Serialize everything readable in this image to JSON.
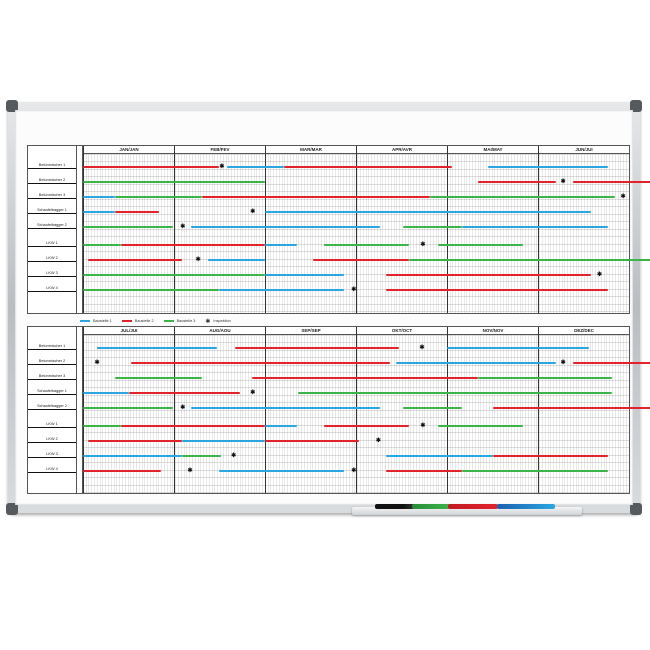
{
  "colors": {
    "blue": "#2aa7e0",
    "red": "#e3232c",
    "green": "#3cb44a"
  },
  "legend": [
    {
      "label": "Baustelle 1",
      "color": "blue"
    },
    {
      "label": "Baustelle 2",
      "color": "red"
    },
    {
      "label": "Baustelle 3",
      "color": "green"
    },
    {
      "label": "Inspektion",
      "icon": "asterisk-icon"
    }
  ],
  "panels": [
    {
      "months": [
        "JAN/JAN",
        "FEB/FEV",
        "MAR/MAR",
        "APR/AVR",
        "MAI/MAY",
        "JUN/JUI"
      ],
      "rows": [
        {
          "label": "Betonmischer 1",
          "bars": [
            [
              "red",
              0,
              1.49
            ],
            [
              "blue",
              1.58,
              2.21
            ],
            [
              "red",
              2.21,
              4.05
            ],
            [
              "blue",
              4.45,
              5.77
            ]
          ],
          "inspections": [
            1.52
          ]
        },
        {
          "label": "Betonmischer 2",
          "bars": [
            [
              "green",
              0,
              2
            ],
            [
              "red",
              4.34,
              5.2
            ],
            [
              "red",
              5.38,
              6.35
            ]
          ],
          "inspections": [
            5.27
          ]
        },
        {
          "label": "Betonmischer 3",
          "bars": [
            [
              "blue",
              0,
              0.35
            ],
            [
              "green",
              0.35,
              1.31
            ],
            [
              "red",
              1.31,
              3.81
            ],
            [
              "green",
              3.81,
              5.85
            ]
          ],
          "inspections": [
            5.93
          ]
        },
        {
          "label": "Schaufelbagger 1",
          "bars": [
            [
              "blue",
              0,
              0.35
            ],
            [
              "red",
              0.35,
              0.83
            ],
            [
              "blue",
              2,
              5.58
            ]
          ],
          "inspections": [
            1.86
          ]
        },
        {
          "label": "Schaufelbagger 2",
          "bars": [
            [
              "green",
              0,
              0.99
            ],
            [
              "blue",
              1.19,
              3.26
            ],
            [
              "green",
              3.52,
              4.16
            ],
            [
              "blue",
              4.16,
              5.77
            ]
          ],
          "inspections": [
            1.09
          ]
        },
        {
          "label": "LKW 1",
          "bars": [
            [
              "green",
              0,
              0.42
            ],
            [
              "red",
              0.42,
              2
            ],
            [
              "blue",
              2,
              2.35
            ],
            [
              "green",
              2.65,
              3.58
            ],
            [
              "green",
              3.9,
              4.84
            ]
          ],
          "inspections": [
            3.73
          ]
        },
        {
          "label": "LKW 2",
          "bars": [
            [
              "red",
              0.06,
              1.09
            ],
            [
              "blue",
              1.37,
              2
            ],
            [
              "red",
              2.53,
              3.58
            ],
            [
              "green",
              3.58,
              6.35
            ]
          ],
          "inspections": [
            1.26
          ]
        },
        {
          "label": "LKW 3",
          "bars": [
            [
              "green",
              0,
              2
            ],
            [
              "blue",
              2,
              2.87
            ],
            [
              "red",
              3.33,
              5.58
            ]
          ],
          "inspections": [
            5.67
          ]
        },
        {
          "label": "LKW 4",
          "bars": [
            [
              "green",
              0,
              1.49
            ],
            [
              "blue",
              1.49,
              2.87
            ],
            [
              "red",
              3.33,
              5.77
            ]
          ],
          "inspections": [
            2.97
          ]
        }
      ]
    },
    {
      "months": [
        "JUL/JUI",
        "AUG/AOU",
        "SEP/SEP",
        "OKT/OCT",
        "NOV/NOV",
        "DEZ/DEC"
      ],
      "rows": [
        {
          "label": "Betonmischer 1",
          "bars": [
            [
              "blue",
              0.15,
              1.47
            ],
            [
              "red",
              1.67,
              3.47
            ],
            [
              "blue",
              4,
              5.56
            ]
          ],
          "inspections": [
            3.72
          ]
        },
        {
          "label": "Betonmischer 2",
          "bars": [
            [
              "red",
              0.53,
              3.37
            ],
            [
              "blue",
              3.44,
              5.2
            ],
            [
              "red",
              5.38,
              6.35
            ]
          ],
          "inspections": [
            0.15,
            5.27
          ]
        },
        {
          "label": "Betonmischer 3",
          "bars": [
            [
              "green",
              0.35,
              1.31
            ],
            [
              "red",
              1.86,
              4.34
            ],
            [
              "green",
              4.34,
              5.81
            ]
          ],
          "inspections": []
        },
        {
          "label": "Schaufelbagger 1",
          "bars": [
            [
              "blue",
              0,
              0.5
            ],
            [
              "red",
              0.5,
              1.72
            ],
            [
              "green",
              2.36,
              5.81
            ]
          ],
          "inspections": [
            1.86
          ]
        },
        {
          "label": "Schaufelbagger 2",
          "bars": [
            [
              "green",
              0,
              0.99
            ],
            [
              "blue",
              1.19,
              3.26
            ],
            [
              "green",
              3.52,
              4.16
            ],
            [
              "red",
              4.5,
              6.35
            ]
          ],
          "inspections": [
            1.09
          ]
        },
        {
          "label": "LKW 1",
          "bars": [
            [
              "green",
              0,
              0.42
            ],
            [
              "red",
              0.42,
              2
            ],
            [
              "blue",
              2,
              2.35
            ],
            [
              "red",
              2.65,
              3.58
            ],
            [
              "green",
              3.9,
              4.84
            ]
          ],
          "inspections": [
            3.73
          ]
        },
        {
          "label": "LKW 2",
          "bars": [
            [
              "red",
              0.06,
              1.09
            ],
            [
              "blue",
              1.09,
              2
            ],
            [
              "red",
              2,
              3.03
            ]
          ],
          "inspections": [
            3.24
          ]
        },
        {
          "label": "LKW 3",
          "bars": [
            [
              "blue",
              0,
              1.09
            ],
            [
              "green",
              1.09,
              1.52
            ],
            [
              "blue",
              3.33,
              4.51
            ],
            [
              "red",
              4.51,
              5.77
            ]
          ],
          "inspections": [
            1.65
          ]
        },
        {
          "label": "LKW 4",
          "bars": [
            [
              "red",
              0,
              0.86
            ],
            [
              "blue",
              1.49,
              2.87
            ],
            [
              "red",
              3.33,
              4.16
            ],
            [
              "green",
              4.16,
              5.77
            ]
          ],
          "inspections": [
            1.17,
            2.97
          ]
        }
      ]
    }
  ]
}
